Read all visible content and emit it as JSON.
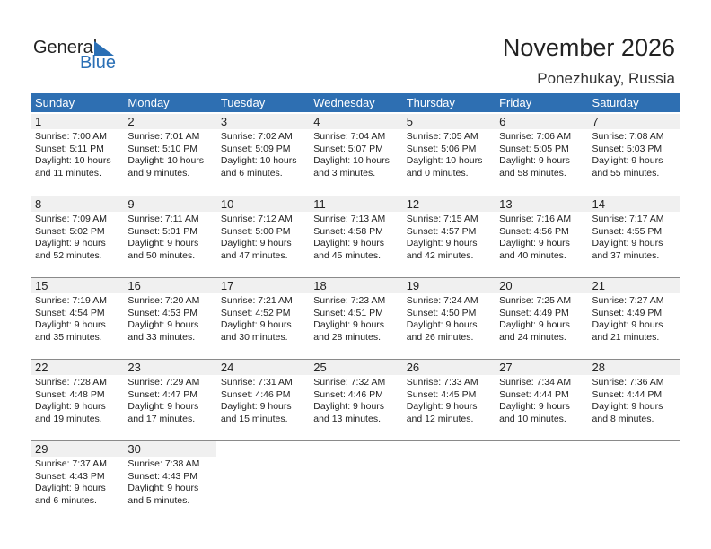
{
  "logo": {
    "text1": "General",
    "text2": "Blue"
  },
  "header": {
    "title": "November 2026",
    "location": "Ponezhukay, Russia"
  },
  "colors": {
    "accent": "#2e6fb2",
    "band": "#f0f0f0"
  },
  "weekdays": [
    "Sunday",
    "Monday",
    "Tuesday",
    "Wednesday",
    "Thursday",
    "Friday",
    "Saturday"
  ],
  "weeks": [
    [
      {
        "day": "1",
        "sunrise": "Sunrise: 7:00 AM",
        "sunset": "Sunset: 5:11 PM",
        "daylight1": "Daylight: 10 hours",
        "daylight2": "and 11 minutes."
      },
      {
        "day": "2",
        "sunrise": "Sunrise: 7:01 AM",
        "sunset": "Sunset: 5:10 PM",
        "daylight1": "Daylight: 10 hours",
        "daylight2": "and 9 minutes."
      },
      {
        "day": "3",
        "sunrise": "Sunrise: 7:02 AM",
        "sunset": "Sunset: 5:09 PM",
        "daylight1": "Daylight: 10 hours",
        "daylight2": "and 6 minutes."
      },
      {
        "day": "4",
        "sunrise": "Sunrise: 7:04 AM",
        "sunset": "Sunset: 5:07 PM",
        "daylight1": "Daylight: 10 hours",
        "daylight2": "and 3 minutes."
      },
      {
        "day": "5",
        "sunrise": "Sunrise: 7:05 AM",
        "sunset": "Sunset: 5:06 PM",
        "daylight1": "Daylight: 10 hours",
        "daylight2": "and 0 minutes."
      },
      {
        "day": "6",
        "sunrise": "Sunrise: 7:06 AM",
        "sunset": "Sunset: 5:05 PM",
        "daylight1": "Daylight: 9 hours",
        "daylight2": "and 58 minutes."
      },
      {
        "day": "7",
        "sunrise": "Sunrise: 7:08 AM",
        "sunset": "Sunset: 5:03 PM",
        "daylight1": "Daylight: 9 hours",
        "daylight2": "and 55 minutes."
      }
    ],
    [
      {
        "day": "8",
        "sunrise": "Sunrise: 7:09 AM",
        "sunset": "Sunset: 5:02 PM",
        "daylight1": "Daylight: 9 hours",
        "daylight2": "and 52 minutes."
      },
      {
        "day": "9",
        "sunrise": "Sunrise: 7:11 AM",
        "sunset": "Sunset: 5:01 PM",
        "daylight1": "Daylight: 9 hours",
        "daylight2": "and 50 minutes."
      },
      {
        "day": "10",
        "sunrise": "Sunrise: 7:12 AM",
        "sunset": "Sunset: 5:00 PM",
        "daylight1": "Daylight: 9 hours",
        "daylight2": "and 47 minutes."
      },
      {
        "day": "11",
        "sunrise": "Sunrise: 7:13 AM",
        "sunset": "Sunset: 4:58 PM",
        "daylight1": "Daylight: 9 hours",
        "daylight2": "and 45 minutes."
      },
      {
        "day": "12",
        "sunrise": "Sunrise: 7:15 AM",
        "sunset": "Sunset: 4:57 PM",
        "daylight1": "Daylight: 9 hours",
        "daylight2": "and 42 minutes."
      },
      {
        "day": "13",
        "sunrise": "Sunrise: 7:16 AM",
        "sunset": "Sunset: 4:56 PM",
        "daylight1": "Daylight: 9 hours",
        "daylight2": "and 40 minutes."
      },
      {
        "day": "14",
        "sunrise": "Sunrise: 7:17 AM",
        "sunset": "Sunset: 4:55 PM",
        "daylight1": "Daylight: 9 hours",
        "daylight2": "and 37 minutes."
      }
    ],
    [
      {
        "day": "15",
        "sunrise": "Sunrise: 7:19 AM",
        "sunset": "Sunset: 4:54 PM",
        "daylight1": "Daylight: 9 hours",
        "daylight2": "and 35 minutes."
      },
      {
        "day": "16",
        "sunrise": "Sunrise: 7:20 AM",
        "sunset": "Sunset: 4:53 PM",
        "daylight1": "Daylight: 9 hours",
        "daylight2": "and 33 minutes."
      },
      {
        "day": "17",
        "sunrise": "Sunrise: 7:21 AM",
        "sunset": "Sunset: 4:52 PM",
        "daylight1": "Daylight: 9 hours",
        "daylight2": "and 30 minutes."
      },
      {
        "day": "18",
        "sunrise": "Sunrise: 7:23 AM",
        "sunset": "Sunset: 4:51 PM",
        "daylight1": "Daylight: 9 hours",
        "daylight2": "and 28 minutes."
      },
      {
        "day": "19",
        "sunrise": "Sunrise: 7:24 AM",
        "sunset": "Sunset: 4:50 PM",
        "daylight1": "Daylight: 9 hours",
        "daylight2": "and 26 minutes."
      },
      {
        "day": "20",
        "sunrise": "Sunrise: 7:25 AM",
        "sunset": "Sunset: 4:49 PM",
        "daylight1": "Daylight: 9 hours",
        "daylight2": "and 24 minutes."
      },
      {
        "day": "21",
        "sunrise": "Sunrise: 7:27 AM",
        "sunset": "Sunset: 4:49 PM",
        "daylight1": "Daylight: 9 hours",
        "daylight2": "and 21 minutes."
      }
    ],
    [
      {
        "day": "22",
        "sunrise": "Sunrise: 7:28 AM",
        "sunset": "Sunset: 4:48 PM",
        "daylight1": "Daylight: 9 hours",
        "daylight2": "and 19 minutes."
      },
      {
        "day": "23",
        "sunrise": "Sunrise: 7:29 AM",
        "sunset": "Sunset: 4:47 PM",
        "daylight1": "Daylight: 9 hours",
        "daylight2": "and 17 minutes."
      },
      {
        "day": "24",
        "sunrise": "Sunrise: 7:31 AM",
        "sunset": "Sunset: 4:46 PM",
        "daylight1": "Daylight: 9 hours",
        "daylight2": "and 15 minutes."
      },
      {
        "day": "25",
        "sunrise": "Sunrise: 7:32 AM",
        "sunset": "Sunset: 4:46 PM",
        "daylight1": "Daylight: 9 hours",
        "daylight2": "and 13 minutes."
      },
      {
        "day": "26",
        "sunrise": "Sunrise: 7:33 AM",
        "sunset": "Sunset: 4:45 PM",
        "daylight1": "Daylight: 9 hours",
        "daylight2": "and 12 minutes."
      },
      {
        "day": "27",
        "sunrise": "Sunrise: 7:34 AM",
        "sunset": "Sunset: 4:44 PM",
        "daylight1": "Daylight: 9 hours",
        "daylight2": "and 10 minutes."
      },
      {
        "day": "28",
        "sunrise": "Sunrise: 7:36 AM",
        "sunset": "Sunset: 4:44 PM",
        "daylight1": "Daylight: 9 hours",
        "daylight2": "and 8 minutes."
      }
    ],
    [
      {
        "day": "29",
        "sunrise": "Sunrise: 7:37 AM",
        "sunset": "Sunset: 4:43 PM",
        "daylight1": "Daylight: 9 hours",
        "daylight2": "and 6 minutes."
      },
      {
        "day": "30",
        "sunrise": "Sunrise: 7:38 AM",
        "sunset": "Sunset: 4:43 PM",
        "daylight1": "Daylight: 9 hours",
        "daylight2": "and 5 minutes."
      }
    ]
  ]
}
